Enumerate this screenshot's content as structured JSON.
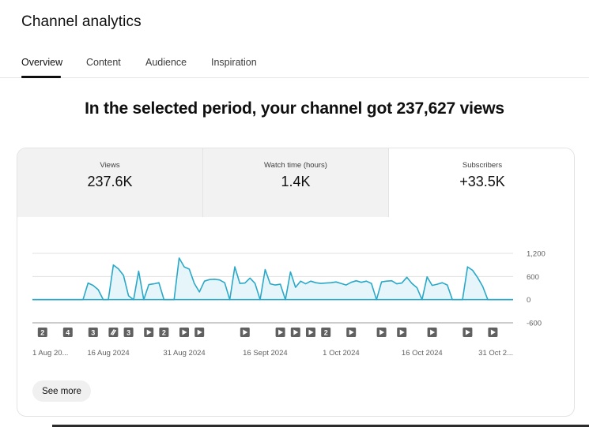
{
  "page": {
    "title": "Channel analytics"
  },
  "tabs": [
    {
      "label": "Overview",
      "active": true
    },
    {
      "label": "Content",
      "active": false
    },
    {
      "label": "Audience",
      "active": false
    },
    {
      "label": "Inspiration",
      "active": false
    }
  ],
  "headline": "In the selected period, your channel got 237,627 views",
  "metrics": [
    {
      "label": "Views",
      "value": "237.6K"
    },
    {
      "label": "Watch time (hours)",
      "value": "1.4K"
    },
    {
      "label": "Subscribers",
      "value": "+33.5K"
    }
  ],
  "see_more_label": "See more",
  "colors": {
    "line": "#2aa8c8",
    "fill": "#e6f5fa",
    "grid": "#e0e0e0",
    "marker": "#606060"
  },
  "chart_data": {
    "type": "area",
    "series": [
      {
        "values": [
          0,
          0,
          0,
          0,
          0,
          0,
          0,
          0,
          0,
          0,
          0,
          430,
          370,
          260,
          0,
          0,
          900,
          800,
          630,
          100,
          0,
          740,
          0,
          390,
          410,
          440,
          0,
          0,
          0,
          1080,
          850,
          790,
          420,
          200,
          480,
          520,
          530,
          510,
          440,
          0,
          850,
          420,
          430,
          560,
          420,
          0,
          780,
          410,
          380,
          400,
          0,
          720,
          320,
          480,
          410,
          480,
          440,
          420,
          430,
          440,
          460,
          420,
          380,
          450,
          490,
          450,
          480,
          420,
          0,
          460,
          480,
          490,
          410,
          430,
          580,
          420,
          310,
          0,
          590,
          370,
          400,
          440,
          380,
          0,
          0,
          0,
          850,
          760,
          570,
          340,
          0,
          0,
          0,
          0,
          0,
          0
        ]
      }
    ],
    "x_ticks": [
      "1 Aug 20...",
      "16 Aug 2024",
      "31 Aug 2024",
      "16 Sept 2024",
      "1 Oct 2024",
      "16 Oct 2024",
      "31 Oct 2..."
    ],
    "x_tick_index": [
      0,
      15,
      30,
      46,
      61,
      77,
      92
    ],
    "y_ticks": [
      "1,200",
      "600",
      "0",
      "-600"
    ],
    "ylim": [
      -600,
      1200
    ],
    "markers": [
      {
        "index": 2,
        "kind": "count",
        "label": "2"
      },
      {
        "index": 7,
        "kind": "count",
        "label": "4"
      },
      {
        "index": 12,
        "kind": "count",
        "label": "3"
      },
      {
        "index": 16,
        "kind": "mixed",
        "label": ""
      },
      {
        "index": 19,
        "kind": "count",
        "label": "3"
      },
      {
        "index": 23,
        "kind": "play",
        "label": ""
      },
      {
        "index": 26,
        "kind": "count",
        "label": "2"
      },
      {
        "index": 30,
        "kind": "play",
        "label": ""
      },
      {
        "index": 33,
        "kind": "play",
        "label": ""
      },
      {
        "index": 42,
        "kind": "play",
        "label": ""
      },
      {
        "index": 49,
        "kind": "play",
        "label": ""
      },
      {
        "index": 52,
        "kind": "play",
        "label": ""
      },
      {
        "index": 55,
        "kind": "play",
        "label": ""
      },
      {
        "index": 58,
        "kind": "count",
        "label": "2"
      },
      {
        "index": 63,
        "kind": "play",
        "label": ""
      },
      {
        "index": 69,
        "kind": "play",
        "label": ""
      },
      {
        "index": 73,
        "kind": "play",
        "label": ""
      },
      {
        "index": 79,
        "kind": "play",
        "label": ""
      },
      {
        "index": 86,
        "kind": "play",
        "label": ""
      },
      {
        "index": 91,
        "kind": "play",
        "label": ""
      }
    ]
  }
}
